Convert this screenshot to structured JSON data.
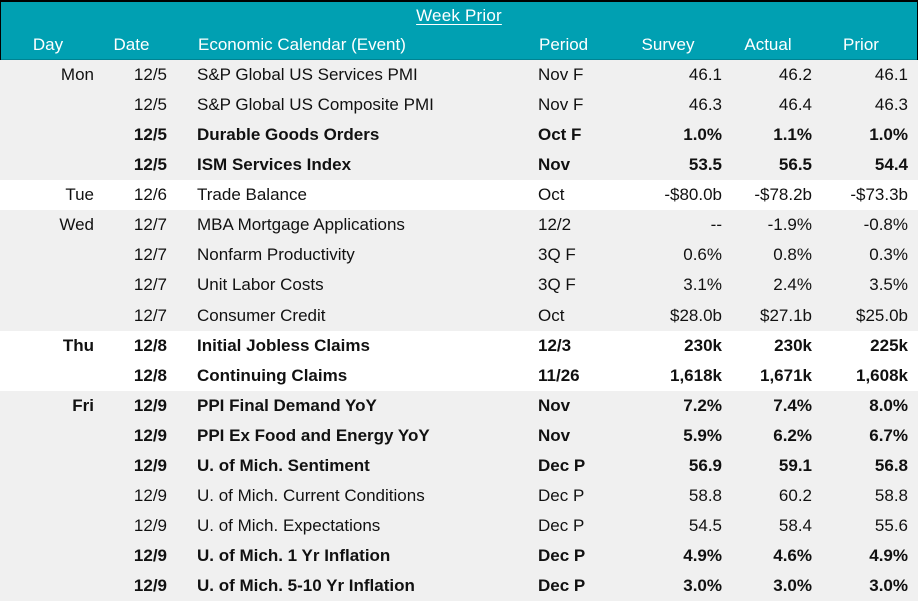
{
  "title": "Week Prior",
  "colors": {
    "header_bg": "#00A0B2",
    "header_text": "#FFFFFF",
    "alt_row_bg": "#F0F0F0",
    "row_bg": "#FFFFFF",
    "body_text": "#111111"
  },
  "chart_data": {
    "type": "table",
    "title": "Week Prior",
    "columns": [
      "Day",
      "Date",
      "Economic Calendar (Event)",
      "Period",
      "Survey",
      "Actual",
      "Prior"
    ],
    "rows": [
      {
        "day": "Mon",
        "date": "12/5",
        "event": "S&P Global US Services PMI",
        "period": "Nov F",
        "survey": "46.1",
        "actual": "46.2",
        "prior": "46.1",
        "bold": false,
        "alt": true
      },
      {
        "day": "",
        "date": "12/5",
        "event": "S&P Global US Composite PMI",
        "period": "Nov F",
        "survey": "46.3",
        "actual": "46.4",
        "prior": "46.3",
        "bold": false,
        "alt": true
      },
      {
        "day": "",
        "date": "12/5",
        "event": "Durable Goods Orders",
        "period": "Oct F",
        "survey": "1.0%",
        "actual": "1.1%",
        "prior": "1.0%",
        "bold": true,
        "alt": true
      },
      {
        "day": "",
        "date": "12/5",
        "event": "ISM Services Index",
        "period": "Nov",
        "survey": "53.5",
        "actual": "56.5",
        "prior": "54.4",
        "bold": true,
        "alt": true
      },
      {
        "day": "Tue",
        "date": "12/6",
        "event": "Trade Balance",
        "period": "Oct",
        "survey": "-$80.0b",
        "actual": "-$78.2b",
        "prior": "-$73.3b",
        "bold": false,
        "alt": false
      },
      {
        "day": "Wed",
        "date": "12/7",
        "event": "MBA Mortgage Applications",
        "period": "12/2",
        "survey": "--",
        "actual": "-1.9%",
        "prior": "-0.8%",
        "bold": false,
        "alt": true
      },
      {
        "day": "",
        "date": "12/7",
        "event": "Nonfarm Productivity",
        "period": "3Q F",
        "survey": "0.6%",
        "actual": "0.8%",
        "prior": "0.3%",
        "bold": false,
        "alt": true
      },
      {
        "day": "",
        "date": "12/7",
        "event": "Unit Labor Costs",
        "period": "3Q F",
        "survey": "3.1%",
        "actual": "2.4%",
        "prior": "3.5%",
        "bold": false,
        "alt": true
      },
      {
        "day": "",
        "date": "12/7",
        "event": "Consumer Credit",
        "period": "Oct",
        "survey": "$28.0b",
        "actual": "$27.1b",
        "prior": "$25.0b",
        "bold": false,
        "alt": true
      },
      {
        "day": "Thu",
        "date": "12/8",
        "event": "Initial Jobless Claims",
        "period": "12/3",
        "survey": "230k",
        "actual": "230k",
        "prior": "225k",
        "bold": true,
        "alt": false
      },
      {
        "day": "",
        "date": "12/8",
        "event": "Continuing Claims",
        "period": "11/26",
        "survey": "1,618k",
        "actual": "1,671k",
        "prior": "1,608k",
        "bold": true,
        "alt": false
      },
      {
        "day": "Fri",
        "date": "12/9",
        "event": "PPI Final Demand YoY",
        "period": "Nov",
        "survey": "7.2%",
        "actual": "7.4%",
        "prior": "8.0%",
        "bold": true,
        "alt": true
      },
      {
        "day": "",
        "date": "12/9",
        "event": "PPI Ex Food and Energy YoY",
        "period": "Nov",
        "survey": "5.9%",
        "actual": "6.2%",
        "prior": "6.7%",
        "bold": true,
        "alt": true
      },
      {
        "day": "",
        "date": "12/9",
        "event": "U. of Mich. Sentiment",
        "period": "Dec P",
        "survey": "56.9",
        "actual": "59.1",
        "prior": "56.8",
        "bold": true,
        "alt": true
      },
      {
        "day": "",
        "date": "12/9",
        "event": "U. of Mich. Current Conditions",
        "period": "Dec P",
        "survey": "58.8",
        "actual": "60.2",
        "prior": "58.8",
        "bold": false,
        "alt": true
      },
      {
        "day": "",
        "date": "12/9",
        "event": "U. of Mich. Expectations",
        "period": "Dec P",
        "survey": "54.5",
        "actual": "58.4",
        "prior": "55.6",
        "bold": false,
        "alt": true
      },
      {
        "day": "",
        "date": "12/9",
        "event": "U. of Mich. 1 Yr Inflation",
        "period": "Dec P",
        "survey": "4.9%",
        "actual": "4.6%",
        "prior": "4.9%",
        "bold": true,
        "alt": true
      },
      {
        "day": "",
        "date": "12/9",
        "event": "U. of Mich. 5-10 Yr Inflation",
        "period": "Dec P",
        "survey": "3.0%",
        "actual": "3.0%",
        "prior": "3.0%",
        "bold": true,
        "alt": true
      }
    ]
  }
}
